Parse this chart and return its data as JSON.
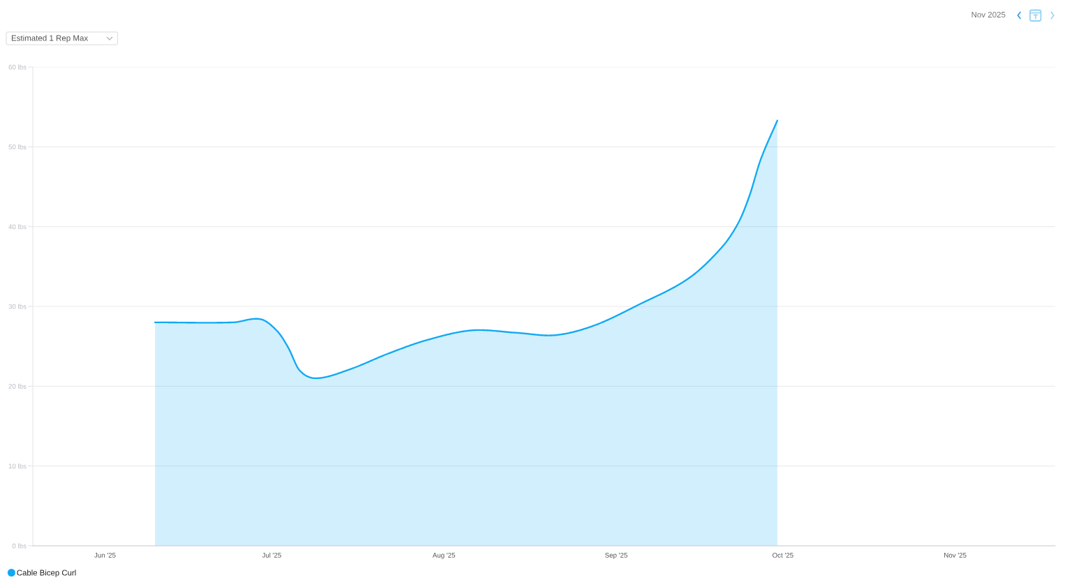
{
  "chart_data": {
    "type": "area",
    "title": "Estimated 1 Rep Max",
    "subtitle": "Nov 2025",
    "x": [
      "2025-06-10",
      "2025-06-24",
      "2025-06-29",
      "2025-07-02",
      "2025-07-04",
      "2025-07-06",
      "2025-07-09",
      "2025-07-15",
      "2025-07-22",
      "2025-07-29",
      "2025-08-06",
      "2025-08-14",
      "2025-08-21",
      "2025-08-28",
      "2025-09-05",
      "2025-09-14",
      "2025-09-20",
      "2025-09-23",
      "2025-09-25",
      "2025-09-27",
      "2025-09-30"
    ],
    "series": [
      {
        "name": "Cable Bicep Curl",
        "color": "#12a9f4",
        "values": [
          28.0,
          28.0,
          28.4,
          26.9,
          24.8,
          22.0,
          21.0,
          22.1,
          24.1,
          25.8,
          27.0,
          26.7,
          26.4,
          27.6,
          30.2,
          33.5,
          37.4,
          40.5,
          43.9,
          48.4,
          53.3
        ]
      }
    ],
    "xlim": [
      "2025-05-19",
      "2025-11-19"
    ],
    "xticks": [
      {
        "value": "2025-06-01",
        "label": "Jun '25"
      },
      {
        "value": "2025-07-01",
        "label": "Jul '25"
      },
      {
        "value": "2025-08-01",
        "label": "Aug '25"
      },
      {
        "value": "2025-09-01",
        "label": "Sep '25"
      },
      {
        "value": "2025-10-01",
        "label": "Oct '25"
      },
      {
        "value": "2025-11-01",
        "label": "Nov '25"
      }
    ],
    "ylim": [
      0,
      60
    ],
    "yticks": [
      {
        "value": 0,
        "label": "0 lbs"
      },
      {
        "value": 10,
        "label": "10 lbs"
      },
      {
        "value": 20,
        "label": "20 lbs"
      },
      {
        "value": 30,
        "label": "30 lbs"
      },
      {
        "value": 40,
        "label": "40 lbs"
      },
      {
        "value": 50,
        "label": "50 lbs"
      },
      {
        "value": 60,
        "label": "60 lbs"
      }
    ],
    "grid": "y",
    "legend": "bottom left"
  }
}
